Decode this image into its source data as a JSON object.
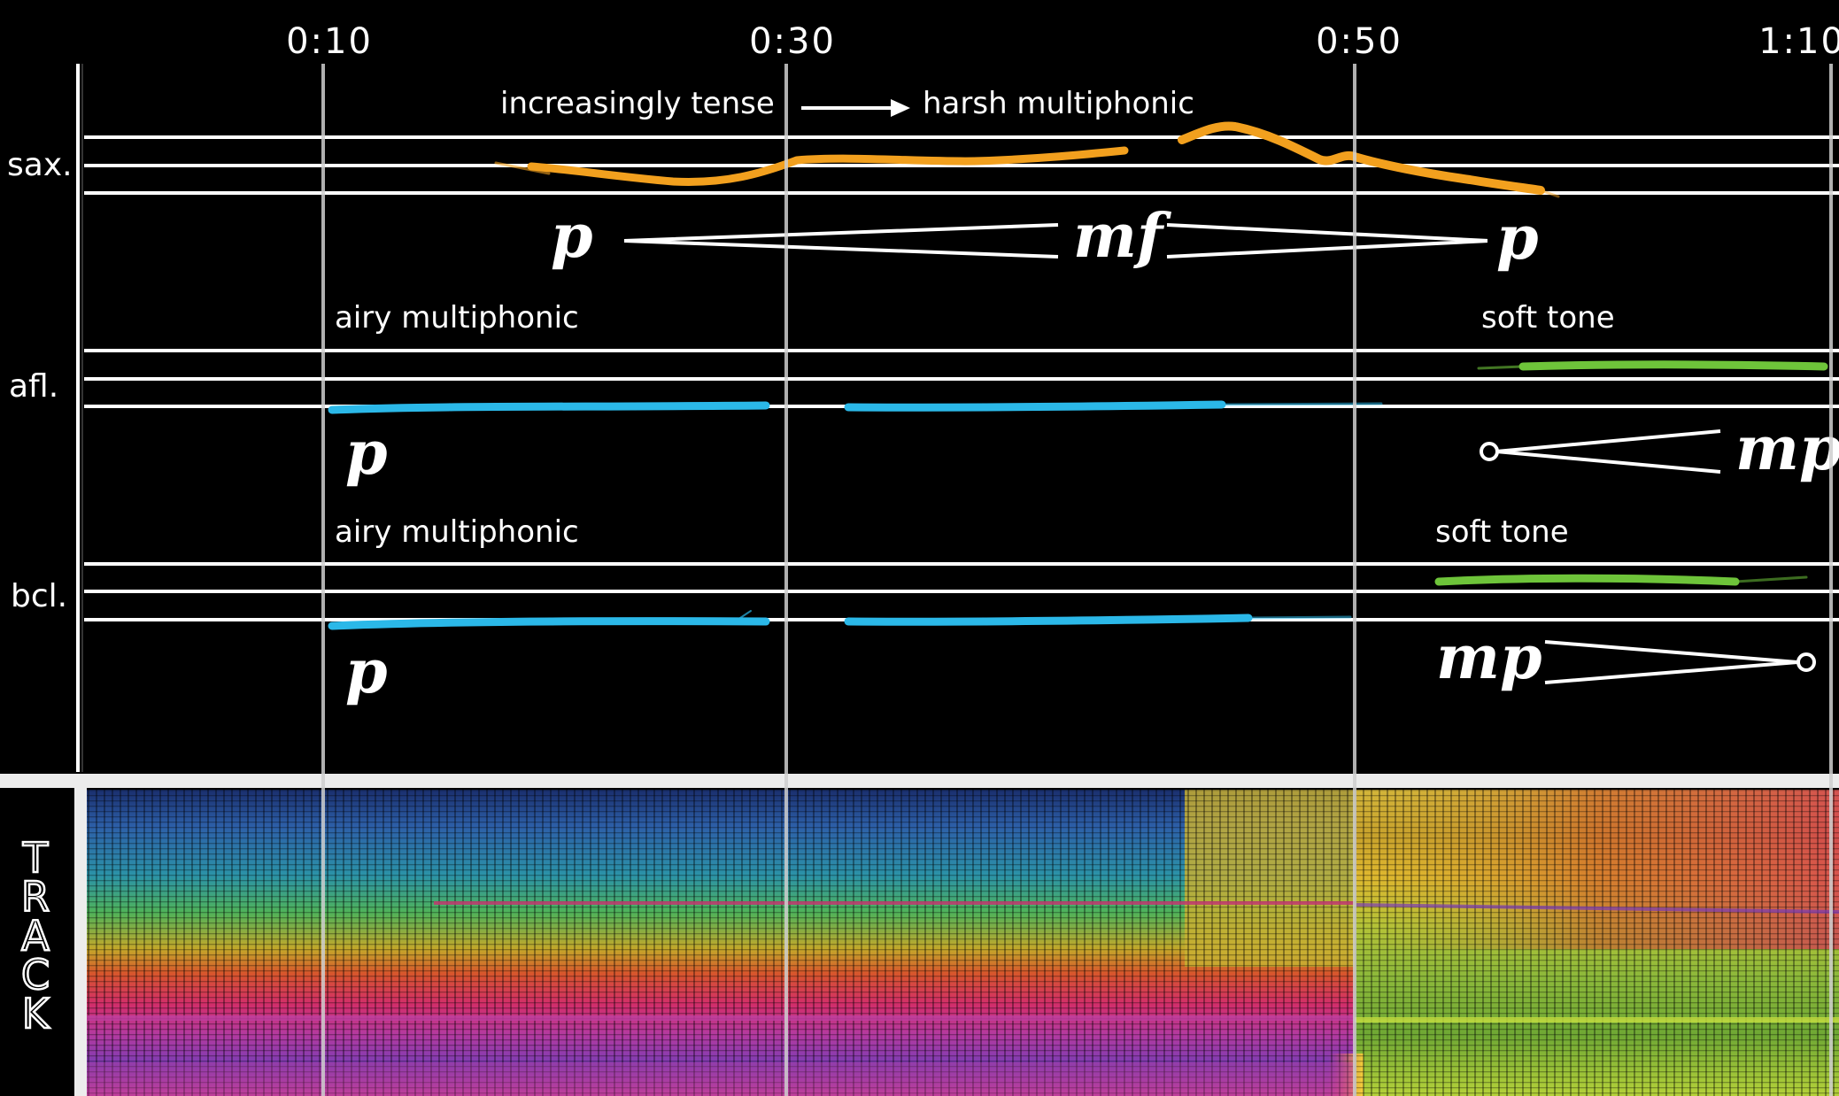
{
  "timeline": {
    "markers": [
      {
        "label": "0:10",
        "seconds": 10
      },
      {
        "label": "0:30",
        "seconds": 30
      },
      {
        "label": "0:50",
        "seconds": 50
      },
      {
        "label": "1:10",
        "seconds": 70
      }
    ]
  },
  "instruments": {
    "sax": {
      "label": "sax.",
      "cue_start": "increasingly tense",
      "cue_end": "harsh multiphonic",
      "dynamics": {
        "start": "p",
        "peak": "mf",
        "end": "p"
      },
      "line_color": "#f2a01e"
    },
    "afl": {
      "label": "afl.",
      "cue_start": "airy multiphonic",
      "cue_end": "soft tone",
      "dynamics": {
        "start": "p",
        "end": "mp"
      },
      "line_color": "#2bb8e8",
      "end_color": "#6ec43a"
    },
    "bcl": {
      "label": "bcl.",
      "cue_start": "airy multiphonic",
      "cue_end": "soft tone",
      "dynamics": {
        "start": "p",
        "end": "mp"
      },
      "line_color": "#2bb8e8",
      "end_color": "#6ec43a"
    }
  },
  "track": {
    "label": "TRACK"
  }
}
